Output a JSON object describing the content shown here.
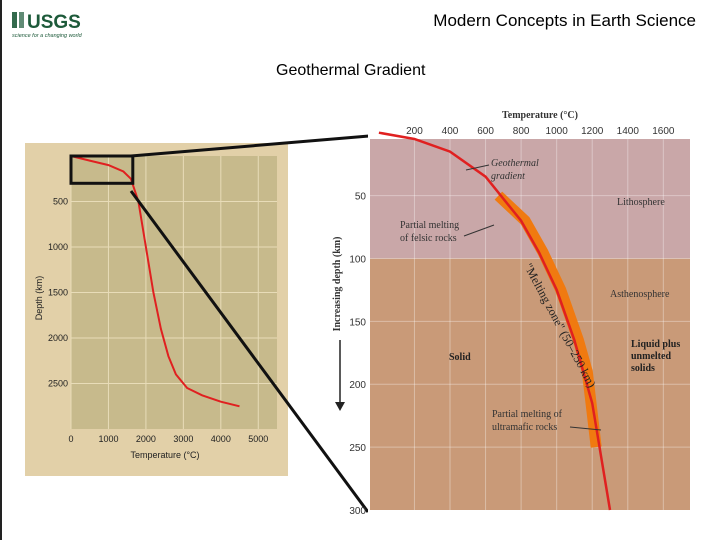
{
  "header": {
    "logo_text": "USGS",
    "logo_tagline": "science for a changing world",
    "title": "Modern Concepts in Earth Science"
  },
  "slide": {
    "title": "Geothermal Gradient"
  },
  "colors": {
    "left_panel_bg": "#e2d0a8",
    "left_plot_bg": "#c7ba8c",
    "lithosphere": "#c9a7a8",
    "asthenosphere": "#c99a78",
    "gradient_line": "#e02020",
    "melting_zone": "#f07a10",
    "usgs_green": "#1d5a3a"
  },
  "chart_data": [
    {
      "type": "line",
      "xlabel": "Temperature (°C)",
      "ylabel": "Depth (km)",
      "xlim": [
        0,
        5500
      ],
      "ylim": [
        3000,
        0
      ],
      "x_ticks": [
        0,
        1000,
        2000,
        3000,
        4000,
        5000
      ],
      "y_ticks": [
        500,
        1000,
        1500,
        2000,
        2500
      ],
      "grid": true,
      "series": [
        {
          "x": [
            0,
            500,
            1000,
            1400,
            1600,
            1800,
            2000,
            2200,
            2400,
            2600,
            2800,
            3100,
            3500,
            4000,
            4500
          ],
          "y": [
            0,
            50,
            100,
            170,
            250,
            500,
            1000,
            1500,
            1900,
            2200,
            2400,
            2550,
            2630,
            2700,
            2750
          ]
        }
      ],
      "inset_box": {
        "xlim": [
          0,
          1650
        ],
        "ylim": [
          0,
          300
        ]
      }
    },
    {
      "type": "line",
      "xlabel": "Temperature (°C)",
      "ylabel": "Increasing depth (km)",
      "xlim": [
        -50,
        1750
      ],
      "ylim": [
        300,
        5
      ],
      "x_ticks": [
        200,
        400,
        600,
        800,
        1000,
        1200,
        1400,
        1600
      ],
      "y_ticks": [
        50,
        100,
        150,
        200,
        250,
        300
      ],
      "regions": [
        {
          "label": "Lithosphere",
          "depth_range": [
            0,
            100
          ]
        },
        {
          "label": "Asthenosphere",
          "depth_range": [
            100,
            300
          ]
        }
      ],
      "series": [
        {
          "x": [
            0,
            200,
            400,
            600,
            800,
            900,
            1000,
            1100,
            1200,
            1300
          ],
          "y": [
            0,
            5,
            15,
            35,
            70,
            95,
            125,
            165,
            215,
            300
          ]
        }
      ],
      "melting_zone": {
        "x": [
          650,
          800,
          900,
          1000,
          1100,
          1150,
          1200
        ],
        "y": [
          50,
          70,
          95,
          125,
          165,
          190,
          250
        ]
      },
      "annotations": {
        "geothermal": "Geothermal gradient",
        "felsic": "Partial melting of felsic rocks",
        "melting_zone": "\"Melting zone\" (50–250 km)",
        "ultramafic": "Partial melting of ultramafic rocks",
        "solid": "Solid",
        "liquid": "Liquid plus unmelted solids"
      }
    }
  ]
}
